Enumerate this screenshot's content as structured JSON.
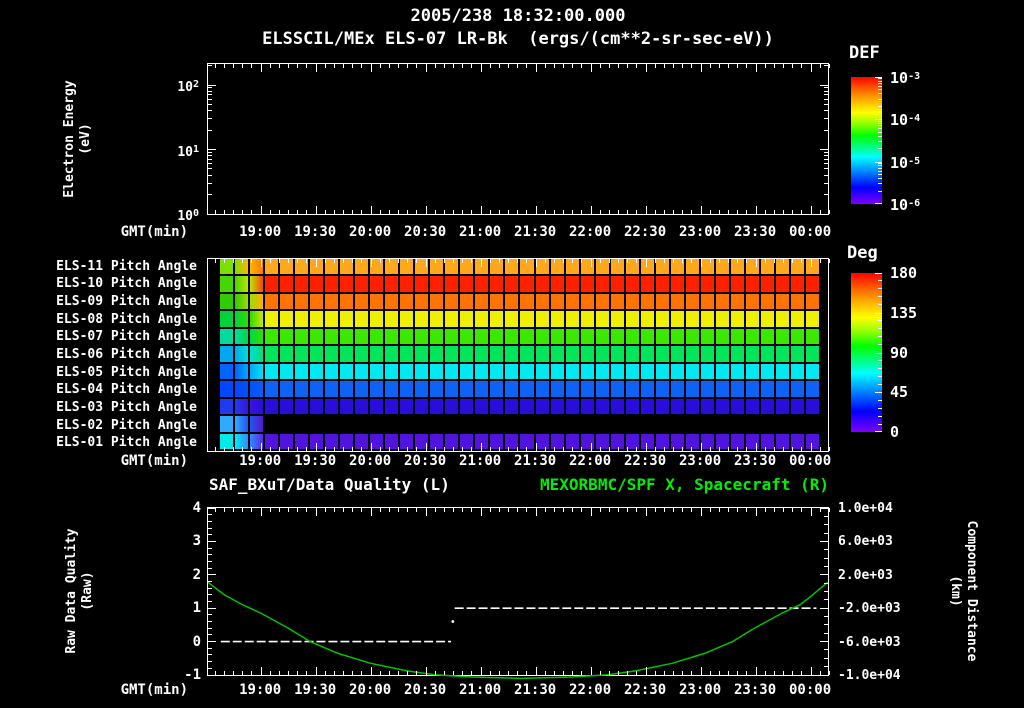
{
  "header": {
    "title_line1": "2005/238 18:32:00.000",
    "title_line2": "ELSSCIL/MEx ELS-07 LR-Bk  (ergs/(cm**2-sr-sec-eV))"
  },
  "colors": {
    "background": "#000000",
    "foreground": "#ffffff",
    "green_text": "#00ee00",
    "green_curve": "#00c400",
    "quality_line": "#ffffff"
  },
  "time_axis": {
    "label": "GMT(min)",
    "major_ticks": [
      "19:00",
      "19:30",
      "20:00",
      "20:30",
      "21:00",
      "21:30",
      "22:00",
      "22:30",
      "23:00",
      "23:30",
      "00:00"
    ],
    "start": "18:31",
    "end": "00:10",
    "major_step_min": 30,
    "minor_step_min": 5
  },
  "panels": {
    "energy": {
      "ylabel_line1": "Electron Energy",
      "ylabel_line2": "(eV)",
      "yticks": [
        "10^0",
        "10^1",
        "10^2"
      ],
      "colorbar_title": "DEF",
      "colorbar_ticks": [
        "10^-3",
        "10^-4",
        "10^-5",
        "10^-6"
      ]
    },
    "pitch": {
      "colorbar_title": "Deg",
      "colorbar_ticks": [
        "180",
        "135",
        "90",
        "45",
        "0"
      ]
    },
    "quality": {
      "title_left": "SAF_BXuT/Data Quality (L)",
      "title_right": "MEXORBMC/SPF X, Spacecraft (R)",
      "left_label_line1": "Raw Data Quality",
      "left_label_line2": "(Raw)",
      "left_ticks": [
        "4",
        "3",
        "2",
        "1",
        "0",
        "-1"
      ],
      "right_label_line1": "Component Distance",
      "right_label_line2": "(km)",
      "right_ticks": [
        "1.0e+04",
        "6.0e+03",
        "2.0e+03",
        "-2.0e+03",
        "-6.0e+03",
        "-1.0e+04"
      ]
    }
  },
  "chart_data": [
    {
      "id": "electron-energy-spectrogram",
      "type": "heatmap",
      "title": "ELSSCIL/MEx ELS-07 LR-Bk",
      "units": "ergs/(cm**2-sr-sec-eV)",
      "xlabel": "GMT(min)",
      "ylabel": "Electron Energy (eV)",
      "yscale": "log",
      "ylim": [
        1,
        230
      ],
      "x_range": [
        "18:31",
        "00:10"
      ],
      "colorbar": {
        "title": "DEF",
        "scale": "log",
        "tick_values": [
          0.001,
          0.0001,
          1e-05,
          1e-06
        ]
      },
      "values": []
    },
    {
      "id": "pitch-angle-heatmap",
      "type": "heatmap",
      "x_range": [
        "18:31",
        "00:10"
      ],
      "columns": 40,
      "colorbar": {
        "title": "Deg",
        "tick_values": [
          180,
          135,
          90,
          45,
          0
        ],
        "range": [
          0,
          180
        ]
      },
      "rows": [
        {
          "label": "ELS-11 Pitch Angle",
          "lead_colors": [
            "#7ce000",
            "#ffb400",
            "#ff7800"
          ],
          "steady_color": "#ffa81e",
          "approx_pitch_deg": 140,
          "no_data_after_lead": false
        },
        {
          "label": "ELS-10 Pitch Angle",
          "lead_colors": [
            "#44d800",
            "#bce400",
            "#ff4400"
          ],
          "steady_color": "#ff2000",
          "approx_pitch_deg": 175,
          "no_data_after_lead": false
        },
        {
          "label": "ELS-09 Pitch Angle",
          "lead_colors": [
            "#2ecc00",
            "#9cdc00",
            "#ffb000"
          ],
          "steady_color": "#ff7300",
          "approx_pitch_deg": 155,
          "no_data_after_lead": false
        },
        {
          "label": "ELS-08 Pitch Angle",
          "lead_colors": [
            "#00d23c",
            "#30dc00",
            "#c8e800"
          ],
          "steady_color": "#eff000",
          "approx_pitch_deg": 125,
          "no_data_after_lead": false
        },
        {
          "label": "ELS-07 Pitch Angle",
          "lead_colors": [
            "#00dca0",
            "#00d848",
            "#30e000"
          ],
          "steady_color": "#3be800",
          "approx_pitch_deg": 105,
          "no_data_after_lead": false
        },
        {
          "label": "ELS-06 Pitch Angle",
          "lead_colors": [
            "#00aaf0",
            "#00e0d2",
            "#00e072"
          ],
          "steady_color": "#00e55a",
          "approx_pitch_deg": 95,
          "no_data_after_lead": false
        },
        {
          "label": "ELS-05 Pitch Angle",
          "lead_colors": [
            "#0064ff",
            "#00a8ff",
            "#00e0f0"
          ],
          "steady_color": "#00e8f0",
          "approx_pitch_deg": 75,
          "no_data_after_lead": false
        },
        {
          "label": "ELS-04 Pitch Angle",
          "lead_colors": [
            "#0048ff",
            "#0052fa",
            "#0c5cf6"
          ],
          "steady_color": "#0c63f5",
          "approx_pitch_deg": 45,
          "no_data_after_lead": false
        },
        {
          "label": "ELS-03 Pitch Angle",
          "lead_colors": [
            "#1e3cee",
            "#3a14dc",
            "#2a0cdb"
          ],
          "steady_color": "#2a0cdb",
          "approx_pitch_deg": 28,
          "no_data_after_lead": false
        },
        {
          "label": "ELS-02 Pitch Angle",
          "lead_colors": [
            "#30aaff",
            "#2356f0",
            "#5018c8"
          ],
          "steady_color": null,
          "approx_pitch_deg": null,
          "no_data_after_lead": true
        },
        {
          "label": "ELS-01 Pitch Angle",
          "lead_colors": [
            "#00ecec",
            "#2e8cff",
            "#5a28e6"
          ],
          "steady_color": "#5214dc",
          "approx_pitch_deg": 12,
          "no_data_after_lead": false
        }
      ]
    },
    {
      "id": "quality-and-distance",
      "type": "line",
      "x_range": [
        "18:31",
        "00:10"
      ],
      "left_axis": {
        "label": "Raw Data Quality (Raw)",
        "range": [
          -1,
          4
        ],
        "tick_values": [
          4,
          3,
          2,
          1,
          0,
          -1
        ]
      },
      "right_axis": {
        "label": "Component Distance (km)",
        "range": [
          -10000,
          10000
        ],
        "tick_values": [
          10000,
          6000,
          2000,
          -2000,
          -6000,
          -10000
        ]
      },
      "series": [
        {
          "name": "SAF_BXuT/Data Quality (L)",
          "axis": "left",
          "style": "dashed",
          "color": "#ffffff",
          "segments": [
            {
              "start": "18:38",
              "end": "20:44",
              "value": 0
            },
            {
              "start": "20:46",
              "end": "00:04",
              "value": 1
            }
          ],
          "step_point": {
            "time": "20:45",
            "value": 0.6
          }
        },
        {
          "name": "MEXORBMC/SPF X, Spacecraft (R)",
          "axis": "right",
          "style": "solid",
          "color": "#00c400",
          "points": [
            [
              "18:31",
              1100
            ],
            [
              "18:40",
              -400
            ],
            [
              "18:50",
              -1600
            ],
            [
              "19:00",
              -2600
            ],
            [
              "19:15",
              -4400
            ],
            [
              "19:27",
              -6000
            ],
            [
              "19:42",
              -7400
            ],
            [
              "20:00",
              -8600
            ],
            [
              "20:20",
              -9500
            ],
            [
              "20:35",
              -9960
            ],
            [
              "20:55",
              -10240
            ],
            [
              "21:15",
              -10360
            ],
            [
              "21:22",
              -10400
            ],
            [
              "21:30",
              -10360
            ],
            [
              "21:50",
              -10240
            ],
            [
              "22:10",
              -9960
            ],
            [
              "22:25",
              -9500
            ],
            [
              "22:45",
              -8600
            ],
            [
              "23:03",
              -7400
            ],
            [
              "23:18",
              -6000
            ],
            [
              "23:30",
              -4400
            ],
            [
              "23:45",
              -2600
            ],
            [
              "23:55",
              -1600
            ],
            [
              "00:02",
              -400
            ],
            [
              "00:10",
              1100
            ]
          ]
        }
      ]
    }
  ]
}
